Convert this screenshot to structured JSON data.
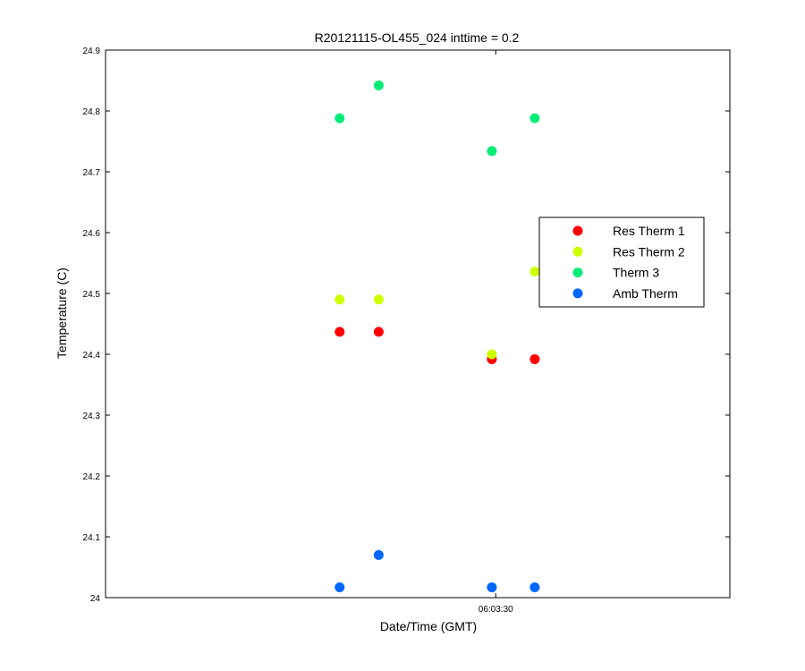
{
  "chart_data": {
    "type": "scatter",
    "title": "R20121115-OL455_024 inttime = 0.2",
    "xlabel": "Date/Time (GMT)",
    "ylabel": "Temperature (C)",
    "ylim": [
      24,
      24.9
    ],
    "yticks": [
      "24",
      "24.1",
      "24.2",
      "24.3",
      "24.4",
      "24.5",
      "24.6",
      "24.7",
      "24.8",
      "24.9"
    ],
    "xticks": [
      "06:03:30"
    ],
    "xlim": [
      "06:02:40",
      "06:04:00"
    ],
    "x_times": [
      "06:03:10",
      "06:03:15",
      "06:03:29.5",
      "06:03:35"
    ],
    "legend_position": "right",
    "grid": false,
    "series": [
      {
        "name": "Res Therm 1",
        "color": "#ff0000",
        "values": [
          24.437,
          24.437,
          24.392,
          24.392
        ]
      },
      {
        "name": "Res Therm 2",
        "color": "#ccff00",
        "values": [
          24.49,
          24.49,
          24.4,
          24.536
        ]
      },
      {
        "name": "Therm 3",
        "color": "#00ee77",
        "values": [
          24.788,
          24.842,
          24.734,
          24.788
        ]
      },
      {
        "name": "Amb Therm",
        "color": "#0066ff",
        "values": [
          24.017,
          24.07,
          24.017,
          24.017
        ]
      }
    ]
  }
}
